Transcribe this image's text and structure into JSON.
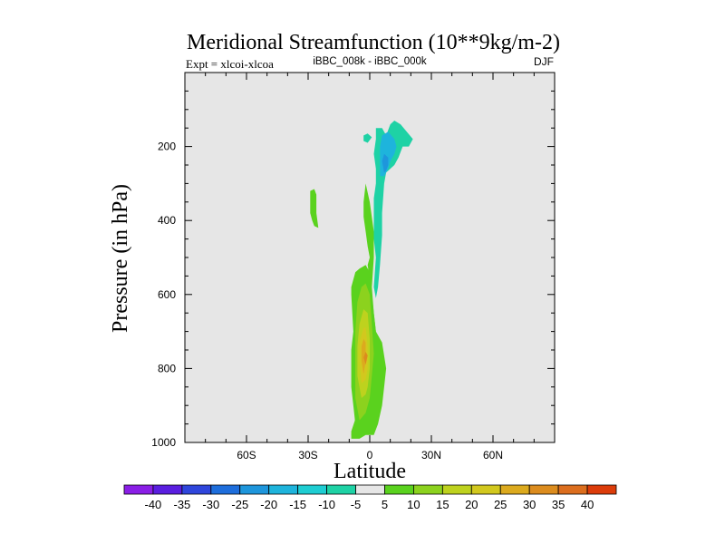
{
  "chart_data": {
    "type": "contour",
    "title": "Meridional Streamfunction (10**9kg/m-2)",
    "left_annotation": "Expt = xlcoi-xlcoa",
    "center_annotation": "iBBC_008k - iBBC_000k",
    "right_annotation": "DJF",
    "xlabel": "Latitude",
    "ylabel": "Pressure (in hPa)",
    "xlim": [
      -90,
      90
    ],
    "ylim": [
      1000,
      0
    ],
    "x_ticks": [
      {
        "value": -60,
        "label": "60S"
      },
      {
        "value": -30,
        "label": "30S"
      },
      {
        "value": 0,
        "label": "0"
      },
      {
        "value": 30,
        "label": "30N"
      },
      {
        "value": 60,
        "label": "60N"
      }
    ],
    "y_ticks": [
      {
        "value": 200,
        "label": "200"
      },
      {
        "value": 400,
        "label": "400"
      },
      {
        "value": 600,
        "label": "600"
      },
      {
        "value": 800,
        "label": "800"
      },
      {
        "value": 1000,
        "label": "1000"
      }
    ],
    "background_color": "#e6e6e6",
    "colorbar": {
      "labels": [
        "-40",
        "-35",
        "-30",
        "-25",
        "-20",
        "-15",
        "-10",
        "-5",
        "5",
        "10",
        "15",
        "20",
        "25",
        "30",
        "35",
        "40"
      ],
      "colors": [
        "#8a1ee6",
        "#5a1ee0",
        "#2f46dc",
        "#1e6edc",
        "#1e96dc",
        "#1eb4dc",
        "#1ecdd2",
        "#1ed2a5",
        "#e6e6e6",
        "#5ad21e",
        "#8cd21e",
        "#bed21e",
        "#d2c81e",
        "#dcaa1e",
        "#dc8c1e",
        "#dc6e1e",
        "#dc3c0a"
      ]
    },
    "features": [
      {
        "name": "positive-cell-outer",
        "level": "5 to 10",
        "color": "#5ad21e",
        "points": [
          [
            -9,
            970
          ],
          [
            -6,
            920
          ],
          [
            -4,
            880
          ],
          [
            0,
            840
          ],
          [
            2,
            810
          ],
          [
            5,
            810
          ],
          [
            6,
            840
          ],
          [
            6,
            890
          ],
          [
            4,
            930
          ],
          [
            2,
            960
          ],
          [
            0,
            960
          ],
          [
            -1,
            950
          ],
          [
            -2,
            910
          ],
          [
            -1,
            850
          ],
          [
            -1,
            800
          ],
          [
            -3,
            750
          ],
          [
            -4,
            700
          ],
          [
            -5,
            650
          ],
          [
            -2,
            600
          ],
          [
            0,
            560
          ],
          [
            -1,
            520
          ],
          [
            0,
            500
          ],
          [
            -1,
            470
          ],
          [
            -2,
            430
          ],
          [
            -3,
            390
          ],
          [
            -3,
            350
          ],
          [
            -2,
            300
          ],
          [
            0,
            350
          ],
          [
            2,
            430
          ],
          [
            2,
            500
          ],
          [
            1,
            580
          ],
          [
            2,
            650
          ],
          [
            3,
            700
          ],
          [
            6,
            730
          ],
          [
            8,
            800
          ],
          [
            7,
            850
          ],
          [
            6,
            900
          ],
          [
            4,
            950
          ],
          [
            2,
            980
          ],
          [
            -2,
            980
          ],
          [
            -5,
            990
          ],
          [
            -9,
            990
          ]
        ]
      },
      {
        "name": "positive-cell-main",
        "level": "5 to 10",
        "color": "#5ad21e",
        "points": [
          [
            -9,
            980
          ],
          [
            -7,
            950
          ],
          [
            -8,
            900
          ],
          [
            -9,
            850
          ],
          [
            -9,
            750
          ],
          [
            -8,
            700
          ],
          [
            -9,
            600
          ],
          [
            -9,
            580
          ],
          [
            -7,
            540
          ],
          [
            -5,
            530
          ],
          [
            -2,
            520
          ],
          [
            0,
            540
          ],
          [
            1,
            600
          ],
          [
            2,
            650
          ],
          [
            3,
            700
          ],
          [
            4,
            760
          ],
          [
            3,
            820
          ],
          [
            4,
            870
          ],
          [
            3,
            900
          ],
          [
            1,
            930
          ],
          [
            0,
            960
          ],
          [
            -2,
            975
          ],
          [
            -5,
            985
          ]
        ]
      },
      {
        "name": "positive-cell-small-left",
        "level": "5 to 10",
        "color": "#5ad21e",
        "points": [
          [
            -29,
            320
          ],
          [
            -27,
            315
          ],
          [
            -26,
            330
          ],
          [
            -26,
            380
          ],
          [
            -25,
            420
          ],
          [
            -27,
            415
          ],
          [
            -28,
            400
          ],
          [
            -29,
            380
          ],
          [
            -29,
            350
          ]
        ]
      },
      {
        "name": "positive-cell-15",
        "level": "10 to 15",
        "color": "#8cd21e",
        "points": [
          [
            -5,
            940
          ],
          [
            -7,
            880
          ],
          [
            -7,
            800
          ],
          [
            -7,
            700
          ],
          [
            -6,
            620
          ],
          [
            -4,
            580
          ],
          [
            -2,
            570
          ],
          [
            0,
            600
          ],
          [
            1,
            680
          ],
          [
            2,
            760
          ],
          [
            1,
            820
          ],
          [
            0,
            880
          ],
          [
            -2,
            920
          ]
        ]
      },
      {
        "name": "positive-cell-20",
        "level": "15 to 20",
        "color": "#bed21e",
        "points": [
          [
            -4,
            880
          ],
          [
            -6,
            820
          ],
          [
            -6,
            740
          ],
          [
            -5,
            680
          ],
          [
            -3,
            640
          ],
          [
            -1,
            650
          ],
          [
            0,
            720
          ],
          [
            0,
            800
          ],
          [
            -1,
            850
          ],
          [
            -2,
            870
          ]
        ]
      },
      {
        "name": "positive-cell-25",
        "level": "20 to 25",
        "color": "#d2c81e",
        "points": [
          [
            -4,
            840
          ],
          [
            -5,
            780
          ],
          [
            -5,
            730
          ],
          [
            -3,
            690
          ],
          [
            -2,
            690
          ],
          [
            -1,
            740
          ],
          [
            -1,
            800
          ],
          [
            -2,
            830
          ]
        ]
      },
      {
        "name": "positive-cell-30",
        "level": "25 to 30",
        "color": "#dcaa1e",
        "points": [
          [
            -3,
            815
          ],
          [
            -4,
            780
          ],
          [
            -4,
            740
          ],
          [
            -3,
            720
          ],
          [
            -2,
            730
          ],
          [
            -2,
            780
          ]
        ]
      },
      {
        "name": "positive-cell-35",
        "level": "30 to 35",
        "color": "#dc8c1e",
        "points": [
          [
            -2,
            790
          ],
          [
            -3,
            770
          ],
          [
            -2,
            755
          ],
          [
            -1,
            765
          ]
        ]
      },
      {
        "name": "negative-cell-outer",
        "level": "-10 to -5",
        "color": "#1ed2a5",
        "points": [
          [
            2,
            580
          ],
          [
            3,
            500
          ],
          [
            2,
            450
          ],
          [
            2,
            400
          ],
          [
            2,
            340
          ],
          [
            3,
            300
          ],
          [
            3,
            260
          ],
          [
            2,
            220
          ],
          [
            3,
            180
          ],
          [
            3,
            150
          ],
          [
            6,
            150
          ],
          [
            8,
            170
          ],
          [
            10,
            140
          ],
          [
            12,
            130
          ],
          [
            15,
            140
          ],
          [
            18,
            160
          ],
          [
            21,
            180
          ],
          [
            19,
            200
          ],
          [
            16,
            200
          ],
          [
            14,
            230
          ],
          [
            12,
            250
          ],
          [
            10,
            260
          ],
          [
            8,
            270
          ],
          [
            7,
            300
          ],
          [
            6,
            380
          ],
          [
            6,
            440
          ],
          [
            5,
            520
          ],
          [
            4,
            580
          ],
          [
            3,
            610
          ]
        ]
      },
      {
        "name": "negative-cell-blob-left",
        "level": "-10 to -5",
        "color": "#1ed2a5",
        "points": [
          [
            -3,
            170
          ],
          [
            -1,
            165
          ],
          [
            1,
            175
          ],
          [
            -1,
            190
          ],
          [
            -3,
            185
          ]
        ]
      },
      {
        "name": "negative-cell-inner",
        "level": "-15 to -10",
        "color": "#1eb4dc",
        "points": [
          [
            5,
            280
          ],
          [
            5,
            240
          ],
          [
            5,
            200
          ],
          [
            6,
            170
          ],
          [
            9,
            160
          ],
          [
            12,
            180
          ],
          [
            13,
            200
          ],
          [
            12,
            220
          ],
          [
            10,
            240
          ],
          [
            9,
            260
          ],
          [
            7,
            280
          ]
        ]
      },
      {
        "name": "negative-cell-core",
        "level": "-20 to -15",
        "color": "#1e96dc",
        "points": [
          [
            7,
            270
          ],
          [
            6,
            240
          ],
          [
            7,
            220
          ],
          [
            9,
            230
          ],
          [
            9,
            250
          ],
          [
            8,
            265
          ]
        ]
      }
    ]
  }
}
